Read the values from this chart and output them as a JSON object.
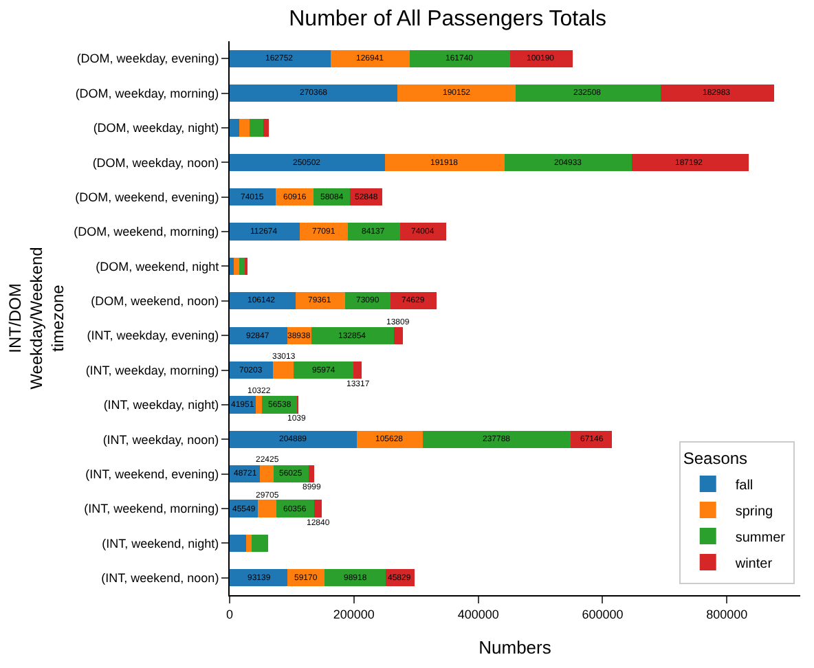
{
  "chart_data": {
    "type": "bar",
    "orientation": "horizontal",
    "stacked": true,
    "title": "Number of All Passengers Totals",
    "xlabel": "Numbers",
    "ylabel": "INT/DOM\nWeekday/Weekend\ntimezone",
    "legend_title": "Seasons",
    "legend": "bottom right",
    "categories": [
      "(DOM, weekday, evening)",
      "(DOM, weekday, morning)",
      "(DOM, weekday, night)",
      "(DOM, weekday, noon)",
      "(DOM, weekend, evening)",
      "(DOM, weekend, morning)",
      "(DOM, weekend, night",
      "(DOM, weekend, noon)",
      "(INT, weekday, evening)",
      "(INT, weekday, morning)",
      "(INT, weekday, night)",
      "(INT, weekday, noon)",
      "(INT, weekend, evening)",
      "(INT, weekend, morning)",
      "(INT, weekend, night)",
      "(INT, weekend, noon)"
    ],
    "xlim": [
      0,
      918000
    ],
    "xticks": [
      0,
      200000,
      400000,
      600000,
      800000
    ],
    "series": [
      {
        "name": "fall",
        "color": "#1f77b4",
        "values": [
          162752,
          270368,
          15000,
          250502,
          74015,
          112674,
          7000,
          106142,
          92847,
          70203,
          41951,
          204889,
          48721,
          45549,
          26000,
          93139
        ],
        "value_labels": [
          "162752",
          "270368",
          null,
          "250502",
          "74015",
          "112674",
          null,
          "106142",
          "92847",
          "70203",
          "41951",
          "204889",
          "48721",
          "45549",
          null,
          "93139"
        ]
      },
      {
        "name": "spring",
        "color": "#ff7f0e",
        "values": [
          126941,
          190152,
          17000,
          191918,
          60916,
          77091,
          8000,
          79361,
          38938,
          33013,
          10322,
          105628,
          22425,
          29705,
          9000,
          59170
        ],
        "value_labels": [
          "126941",
          "190152",
          null,
          "191918",
          "60916",
          "77091",
          null,
          "79361",
          "38938",
          "33013",
          "10322",
          "105628",
          "22425",
          "29705",
          null,
          "59170"
        ]
      },
      {
        "name": "summer",
        "color": "#2ca02c",
        "values": [
          161740,
          232508,
          22000,
          204933,
          58084,
          84137,
          10000,
          73090,
          132854,
          95974,
          56538,
          237788,
          56025,
          60356,
          27000,
          98918
        ],
        "value_labels": [
          "161740",
          "232508",
          null,
          "204933",
          "58084",
          "84137",
          null,
          "73090",
          "132854",
          "95974",
          "56538",
          "237788",
          "56025",
          "60356",
          null,
          "98918"
        ]
      },
      {
        "name": "winter",
        "color": "#d62728",
        "values": [
          100190,
          182983,
          9000,
          187192,
          52848,
          74004,
          4000,
          74629,
          13809,
          13317,
          1039,
          67146,
          8999,
          12840,
          null,
          45829
        ],
        "value_labels": [
          "100190",
          "182983",
          null,
          "187192",
          "52848",
          "74004",
          null,
          "74629",
          "13809",
          "13317",
          "1039",
          "67146",
          "8999",
          "12840",
          null,
          "45829"
        ]
      }
    ]
  }
}
